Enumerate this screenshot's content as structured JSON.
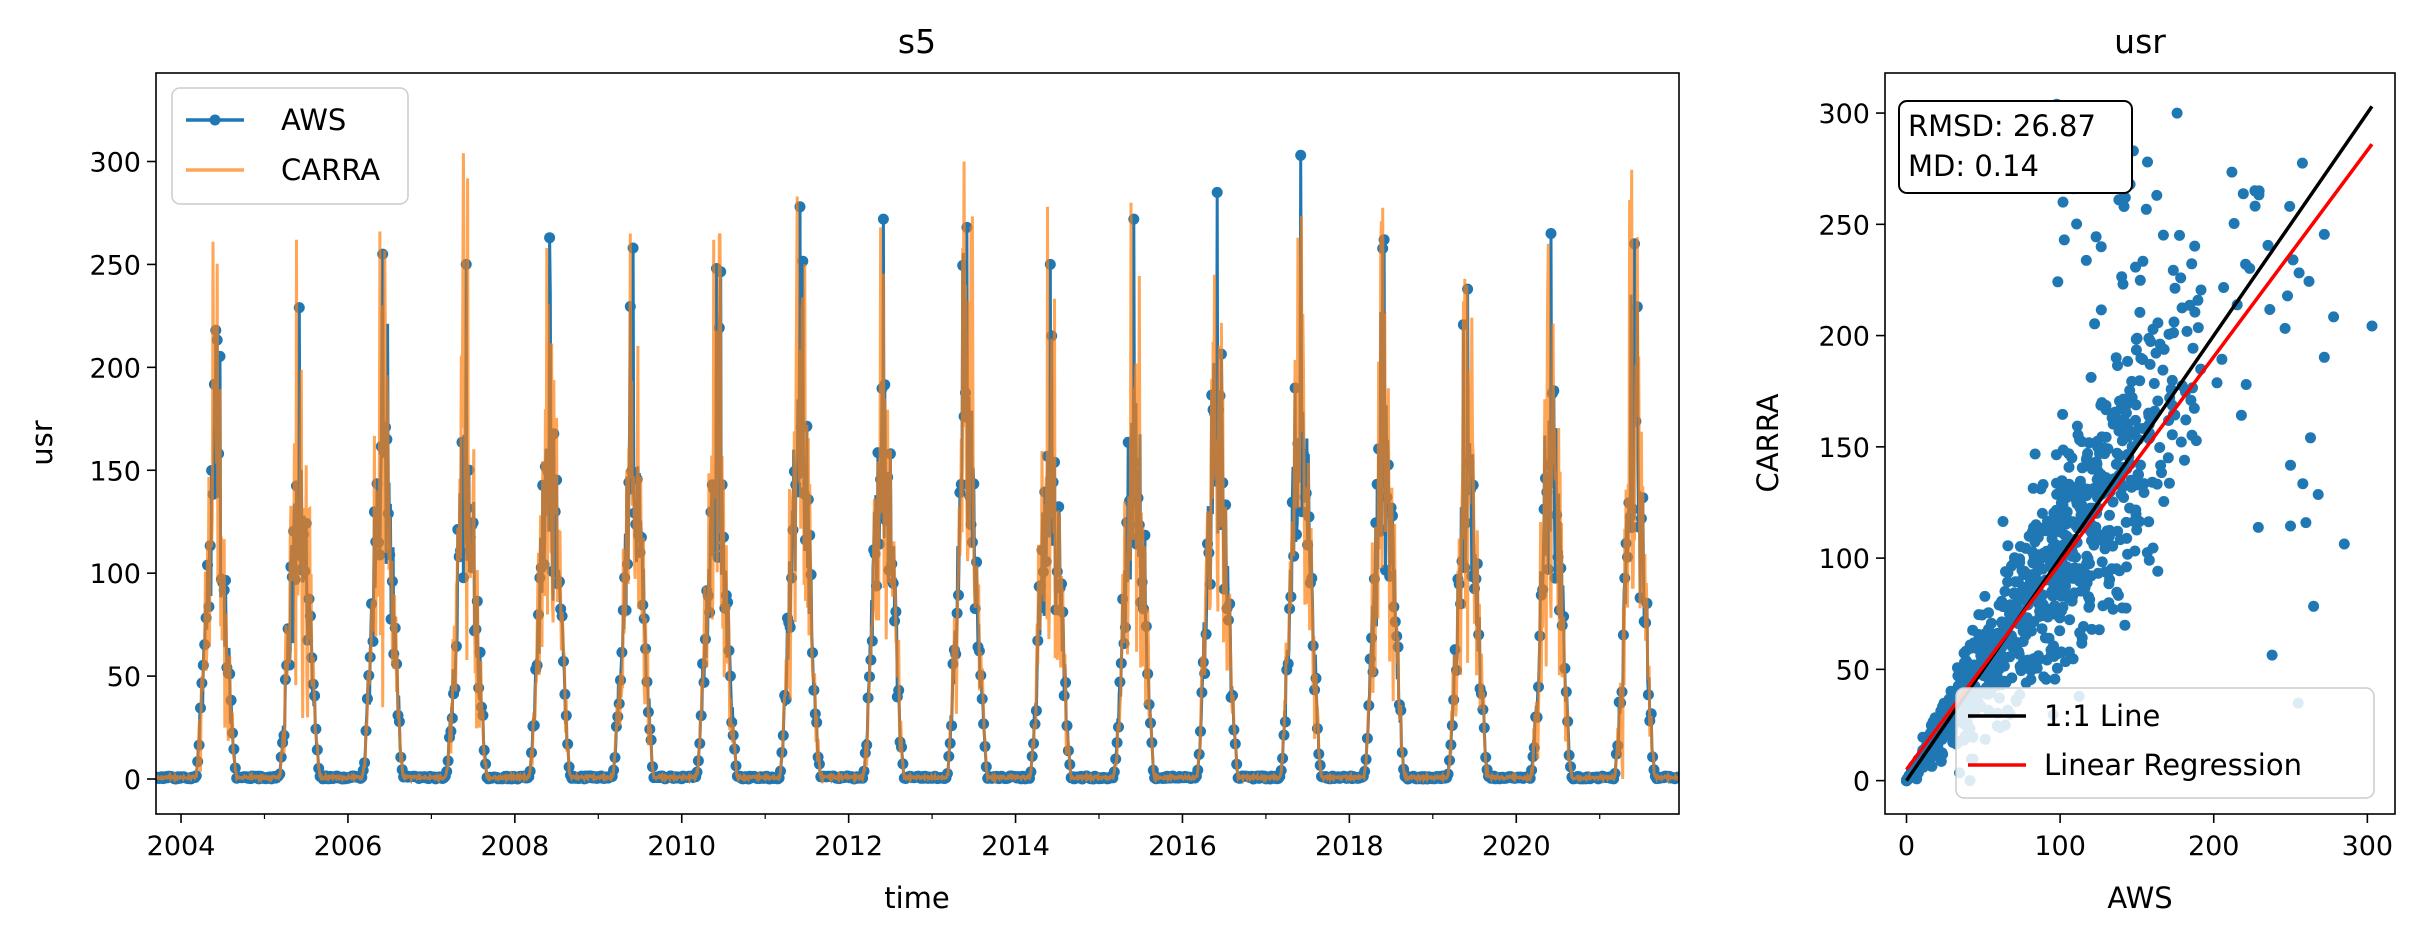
{
  "colors": {
    "aws": "#1f77b4",
    "carra": "#ff7f0e",
    "one_to_one": "#000000",
    "regression": "#ff0000"
  },
  "chart_data": [
    {
      "type": "line",
      "title": "s5",
      "xlabel": "time",
      "ylabel": "usr",
      "xlim": [
        2003.7,
        2021.95
      ],
      "ylim": [
        -17,
        343
      ],
      "x_ticks": [
        2004,
        2006,
        2008,
        2010,
        2012,
        2014,
        2016,
        2018,
        2020
      ],
      "x_tick_labels": [
        "2004",
        "2006",
        "2008",
        "2010",
        "2012",
        "2014",
        "2016",
        "2018",
        "2020"
      ],
      "y_ticks": [
        0,
        50,
        100,
        150,
        200,
        250,
        300
      ],
      "y_tick_labels": [
        "0",
        "50",
        "100",
        "150",
        "200",
        "250",
        "300"
      ],
      "legend_position": "upper-left",
      "series": [
        {
          "name": "AWS",
          "color": "#1f77b4",
          "marker": "circle",
          "note": "daily values; seasonal cycle peaking in early summer each year",
          "annual_peaks": [
            {
              "year": 2004,
              "value": 218
            },
            {
              "year": 2005,
              "value": 229
            },
            {
              "year": 2006,
              "value": 255
            },
            {
              "year": 2007,
              "value": 250
            },
            {
              "year": 2008,
              "value": 263
            },
            {
              "year": 2009,
              "value": 258
            },
            {
              "year": 2010,
              "value": 248
            },
            {
              "year": 2011,
              "value": 278
            },
            {
              "year": 2012,
              "value": 272
            },
            {
              "year": 2013,
              "value": 268
            },
            {
              "year": 2014,
              "value": 250
            },
            {
              "year": 2015,
              "value": 272
            },
            {
              "year": 2016,
              "value": 285
            },
            {
              "year": 2017,
              "value": 303
            },
            {
              "year": 2018,
              "value": 262
            },
            {
              "year": 2019,
              "value": 238
            },
            {
              "year": 2020,
              "value": 265
            },
            {
              "year": 2021,
              "value": 260
            }
          ]
        },
        {
          "name": "CARRA",
          "color": "#ff7f0e",
          "opacity": 0.7,
          "annual_peaks": [
            {
              "year": 2004,
              "value": 261
            },
            {
              "year": 2005,
              "value": 262
            },
            {
              "year": 2006,
              "value": 266
            },
            {
              "year": 2007,
              "value": 304
            },
            {
              "year": 2008,
              "value": 258
            },
            {
              "year": 2009,
              "value": 265
            },
            {
              "year": 2010,
              "value": 262
            },
            {
              "year": 2011,
              "value": 283
            },
            {
              "year": 2012,
              "value": 268
            },
            {
              "year": 2013,
              "value": 300
            },
            {
              "year": 2014,
              "value": 278
            },
            {
              "year": 2015,
              "value": 280
            },
            {
              "year": 2016,
              "value": 245
            },
            {
              "year": 2017,
              "value": 263
            },
            {
              "year": 2018,
              "value": 271
            },
            {
              "year": 2019,
              "value": 243
            },
            {
              "year": 2020,
              "value": 260
            },
            {
              "year": 2021,
              "value": 296
            }
          ]
        }
      ]
    },
    {
      "type": "scatter",
      "title": "usr",
      "xlabel": "AWS",
      "ylabel": "CARRA",
      "xlim": [
        -14,
        318
      ],
      "ylim": [
        -15,
        318
      ],
      "x_ticks": [
        0,
        100,
        200,
        300
      ],
      "x_tick_labels": [
        "0",
        "100",
        "200",
        "300"
      ],
      "y_ticks": [
        0,
        50,
        100,
        150,
        200,
        250,
        300
      ],
      "y_tick_labels": [
        "0",
        "50",
        "100",
        "150",
        "200",
        "250",
        "300"
      ],
      "stats": {
        "rmsd": "RMSD: 26.87",
        "md": "MD: 0.14"
      },
      "points_color": "#1f77b4",
      "lines": [
        {
          "name": "1:1 Line",
          "color": "#000000",
          "x": [
            0,
            303
          ],
          "y": [
            0,
            303
          ]
        },
        {
          "name": "Linear Regression",
          "color": "#ff0000",
          "x": [
            0,
            303
          ],
          "y": [
            5,
            286
          ]
        }
      ],
      "legend_position": "lower-right"
    }
  ]
}
